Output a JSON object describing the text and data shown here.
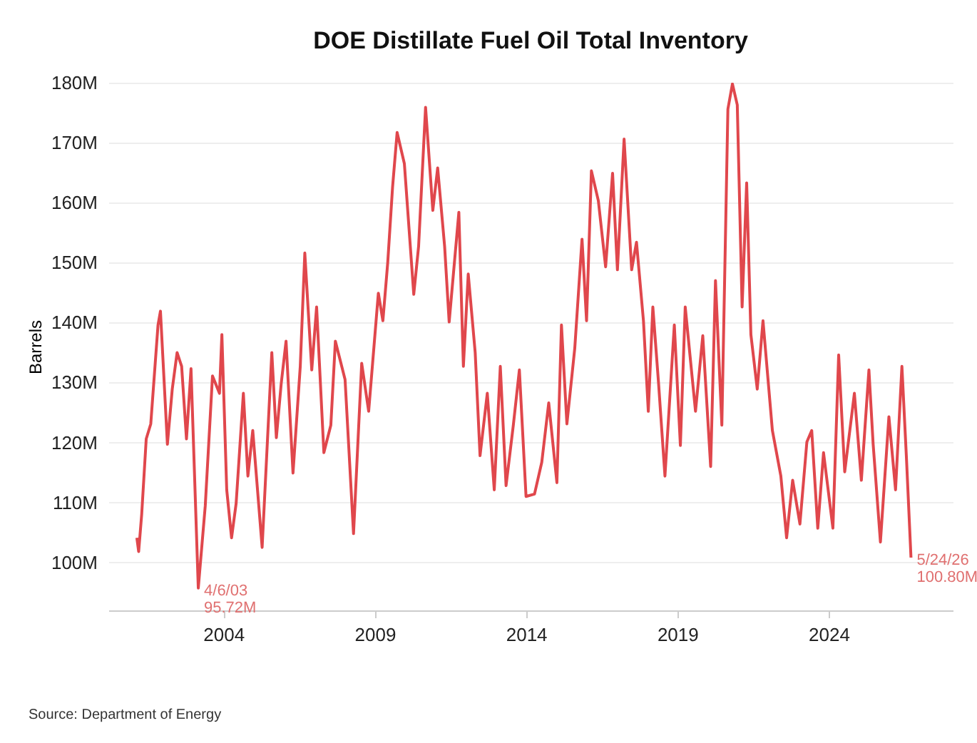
{
  "chart_data": {
    "type": "line",
    "title": "DOE Distillate Fuel Oil Total Inventory",
    "ylabel": "Barrels",
    "x": [
      2001.14,
      2001.2,
      2001.3,
      2001.45,
      2001.6,
      2001.84,
      2001.92,
      2002.15,
      2002.31,
      2002.47,
      2002.62,
      2002.78,
      2002.93,
      2003.17,
      2003.4,
      2003.64,
      2003.87,
      2003.95,
      2004.11,
      2004.27,
      2004.42,
      2004.66,
      2004.81,
      2004.97,
      2005.28,
      2005.6,
      2005.75,
      2005.91,
      2006.07,
      2006.3,
      2006.54,
      2006.69,
      2006.92,
      2007.08,
      2007.32,
      2007.55,
      2007.7,
      2008.02,
      2008.3,
      2008.57,
      2008.8,
      2009.12,
      2009.27,
      2009.43,
      2009.59,
      2009.74,
      2009.98,
      2010.29,
      2010.45,
      2010.68,
      2010.92,
      2011.08,
      2011.31,
      2011.46,
      2011.78,
      2011.93,
      2012.09,
      2012.32,
      2012.48,
      2012.72,
      2012.95,
      2013.15,
      2013.34,
      2013.58,
      2013.78,
      2014.0,
      2014.28,
      2014.52,
      2014.75,
      2015.02,
      2015.17,
      2015.35,
      2015.61,
      2015.85,
      2016.0,
      2016.16,
      2016.39,
      2016.63,
      2016.86,
      2017.02,
      2017.24,
      2017.49,
      2017.65,
      2017.88,
      2018.04,
      2018.19,
      2018.38,
      2018.59,
      2018.9,
      2019.1,
      2019.26,
      2019.6,
      2019.84,
      2020.1,
      2020.26,
      2020.47,
      2020.67,
      2020.82,
      2020.98,
      2021.14,
      2021.29,
      2021.43,
      2021.64,
      2021.83,
      2022.14,
      2022.42,
      2022.61,
      2022.81,
      2023.05,
      2023.28,
      2023.44,
      2023.64,
      2023.83,
      2024.14,
      2024.33,
      2024.53,
      2024.85,
      2025.08,
      2025.33,
      2025.47,
      2025.71,
      2025.99,
      2026.21,
      2026.42,
      2026.57,
      2026.72
    ],
    "series": [
      {
        "color": "#e0474c",
        "values": [
          104.1,
          101.8,
          108,
          120.6,
          123.1,
          139.6,
          141.9,
          119.7,
          128.9,
          135,
          132.7,
          120.6,
          132.3,
          95.72,
          109.4,
          131.1,
          128.2,
          138,
          112.1,
          104.1,
          109.8,
          128.2,
          114.4,
          122,
          102.5,
          135,
          120.8,
          129.8,
          136.9,
          114.9,
          132.7,
          151.6,
          132.1,
          142.6,
          118.3,
          122.9,
          136.9,
          130.5,
          104.8,
          133.2,
          125.2,
          144.9,
          140.3,
          150,
          162.6,
          171.7,
          166.5,
          144.7,
          152.7,
          175.9,
          158.7,
          165.8,
          152.7,
          140.1,
          158.4,
          132.7,
          148.1,
          135,
          117.8,
          128.2,
          112.1,
          132.7,
          112.8,
          122.9,
          132.1,
          111,
          111.4,
          116.7,
          126.6,
          113.3,
          139.6,
          123.1,
          135.7,
          153.9,
          140.3,
          165.3,
          160.3,
          149.3,
          164.9,
          148.8,
          170.6,
          148.8,
          153.4,
          140.3,
          125.2,
          142.6,
          129.8,
          114.4,
          139.6,
          119.5,
          142.6,
          125.2,
          137.8,
          116,
          147,
          122.9,
          175.6,
          179.8,
          176.3,
          142.6,
          163.3,
          138,
          128.9,
          140.3,
          122,
          114.4,
          104.1,
          113.7,
          106.4,
          120.1,
          122,
          105.7,
          118.3,
          105.7,
          134.6,
          115.1,
          128.2,
          113.7,
          132.1,
          119.7,
          103.4,
          124.3,
          112.1,
          132.7,
          117.4,
          100.8
        ]
      }
    ],
    "xlim": [
      2000.2,
      2028.1
    ],
    "xticks": [
      2004,
      2009,
      2014,
      2019,
      2024
    ],
    "ylim": [
      92,
      180
    ],
    "yticks": [
      {
        "value": 100,
        "label": "100M"
      },
      {
        "value": 110,
        "label": "110M"
      },
      {
        "value": 120,
        "label": "120M"
      },
      {
        "value": 130,
        "label": "130M"
      },
      {
        "value": 140,
        "label": "140M"
      },
      {
        "value": 150,
        "label": "150M"
      },
      {
        "value": 160,
        "label": "160M"
      },
      {
        "value": 170,
        "label": "170M"
      },
      {
        "value": 180,
        "label": "180M"
      }
    ],
    "grid": "y",
    "annotations": [
      {
        "text": "4/6/03\n95.72M",
        "x": 2003.17,
        "y": 95.72
      },
      {
        "text": "5/24/26\n100.80M",
        "x": 2026.72,
        "y": 100.8
      },
      "Source: Department of Energy"
    ]
  }
}
